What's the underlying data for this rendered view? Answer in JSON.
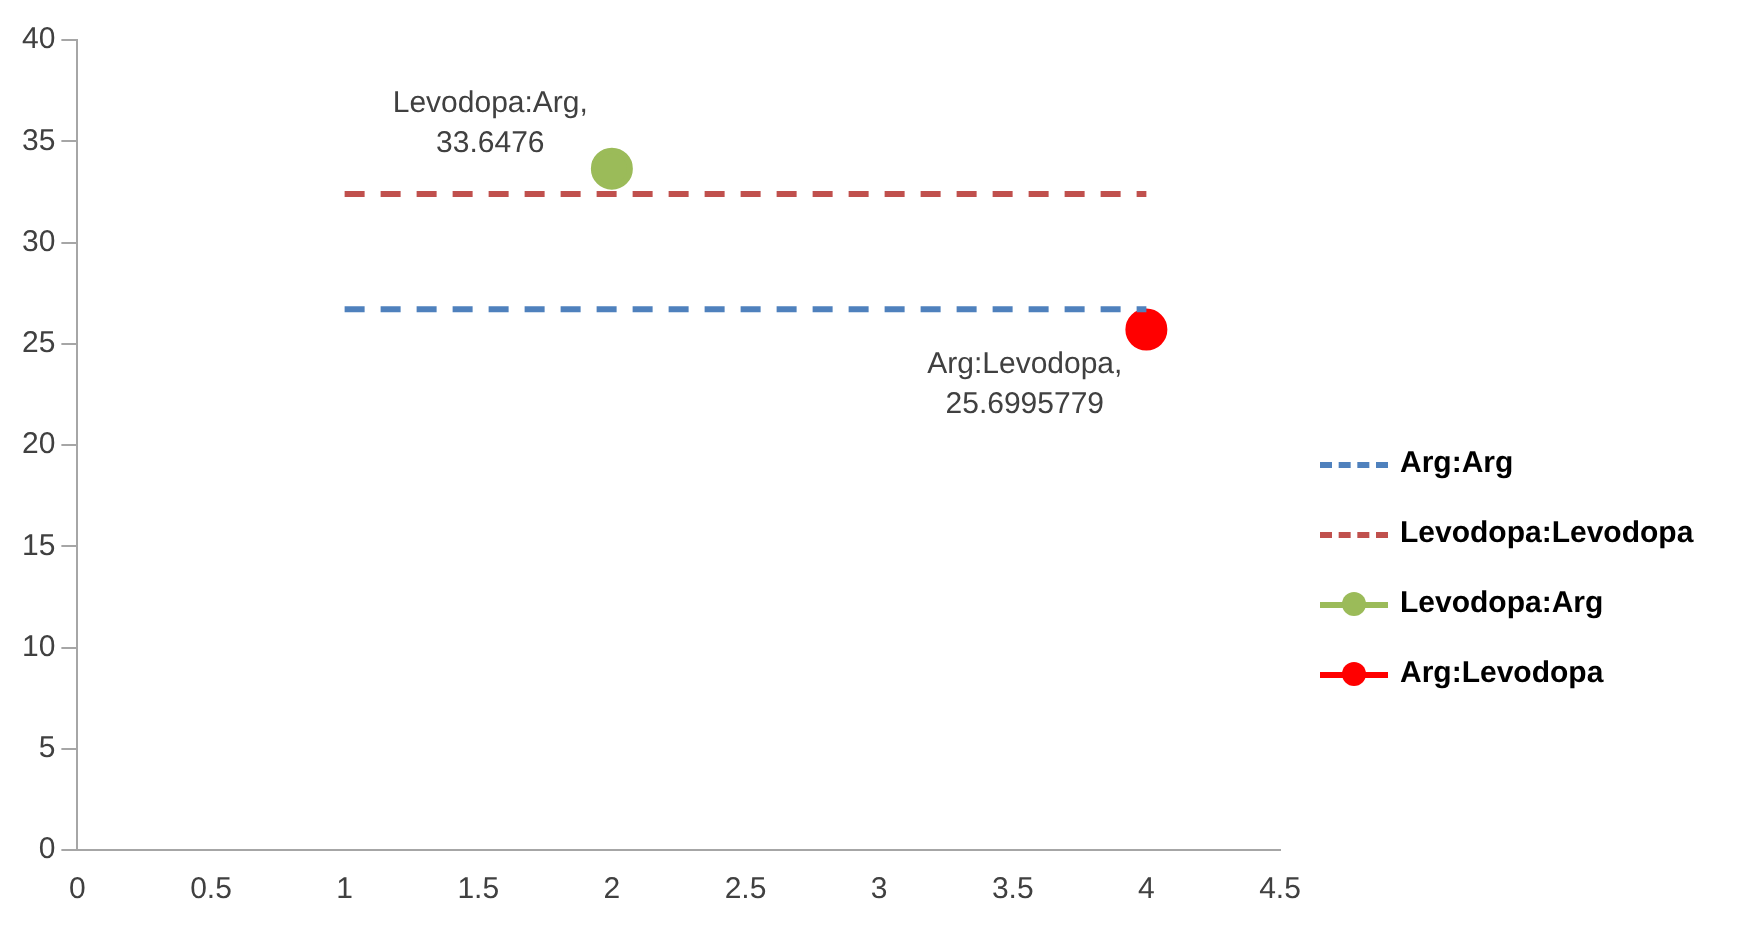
{
  "chart_data": {
    "type": "line",
    "xlim": [
      0,
      4.5
    ],
    "xticks": [
      0,
      0.5,
      1,
      1.5,
      2,
      2.5,
      3,
      3.5,
      4,
      4.5
    ],
    "ylim": [
      0,
      40
    ],
    "yticks": [
      0,
      5,
      10,
      15,
      20,
      25,
      30,
      35,
      40
    ],
    "grid": false,
    "legend": "right",
    "series": [
      {
        "name": "Arg:Arg",
        "color": "#4f81bd",
        "x": [
          1,
          4
        ],
        "values": [
          26.7,
          26.7
        ],
        "line_style": "dashed",
        "marker": "none"
      },
      {
        "name": "Levodopa:Levodopa",
        "color": "#c0504d",
        "x": [
          1,
          4
        ],
        "values": [
          32.4,
          32.4
        ],
        "line_style": "dashed",
        "marker": "none"
      },
      {
        "name": "Levodopa:Arg",
        "color": "#9bbb59",
        "x": [
          2
        ],
        "values": [
          33.6476
        ],
        "line_style": "solid",
        "marker": "circle"
      },
      {
        "name": "Arg:Levodopa",
        "color": "#ff0000",
        "x": [
          4
        ],
        "values": [
          25.6995779
        ],
        "line_style": "solid",
        "marker": "circle"
      }
    ],
    "annotations": [
      {
        "text": "Levodopa:Arg, 33.6476",
        "x": 2,
        "y": 33.6476
      },
      {
        "text": "Arg:Levodopa, 25.6995779",
        "x": 4,
        "y": 25.6995779
      }
    ]
  }
}
